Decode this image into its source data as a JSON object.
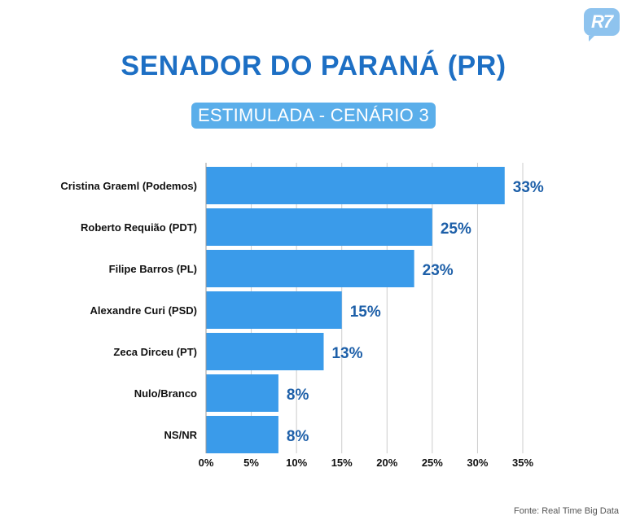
{
  "logo": {
    "text": "R7"
  },
  "header": {
    "title": "SENADOR DO PARANÁ (PR)",
    "subtitle": "ESTIMULADA - CENÁRIO 3"
  },
  "source": "Fonte: Real Time Big Data",
  "colors": {
    "bar": "#3a9bea",
    "value_label": "#1d5fa8",
    "title": "#1d6fc4",
    "grid": "#cccccc"
  },
  "chart_data": {
    "type": "bar",
    "orientation": "horizontal",
    "categories": [
      "Cristina Graeml (Podemos)",
      "Roberto Requião (PDT)",
      "Filipe Barros (PL)",
      "Alexandre Curi (PSD)",
      "Zeca Dirceu (PT)",
      "Nulo/Branco",
      "NS/NR"
    ],
    "values": [
      33,
      25,
      23,
      15,
      13,
      8,
      8
    ],
    "value_labels": [
      "33%",
      "25%",
      "23%",
      "15%",
      "13%",
      "8%",
      "8%"
    ],
    "xlim": [
      0,
      35
    ],
    "xticks": [
      0,
      5,
      10,
      15,
      20,
      25,
      30,
      35
    ],
    "xtick_labels": [
      "0%",
      "5%",
      "10%",
      "15%",
      "20%",
      "25%",
      "30%",
      "35%"
    ],
    "grid": true
  }
}
